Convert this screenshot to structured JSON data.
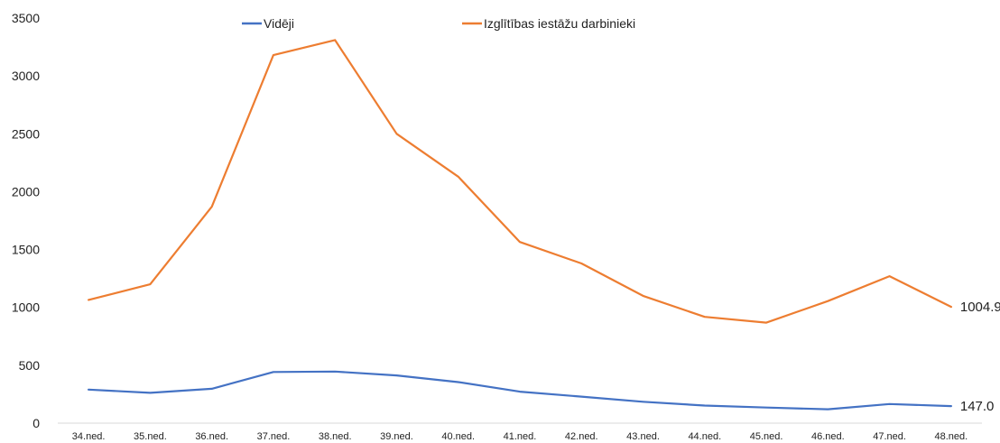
{
  "chart_data": {
    "type": "line",
    "title": "",
    "xlabel": "",
    "ylabel": "",
    "categories": [
      "34.ned.",
      "35.ned.",
      "36.ned.",
      "37.ned.",
      "38.ned.",
      "39.ned.",
      "40.ned.",
      "41.ned.",
      "42.ned.",
      "43.ned.",
      "44.ned.",
      "45.ned.",
      "46.ned.",
      "47.ned.",
      "48.ned."
    ],
    "ylim": [
      0,
      3500
    ],
    "yticks": [
      0,
      500,
      1000,
      1500,
      2000,
      2500,
      3000,
      3500
    ],
    "grid": false,
    "legend_position": "top",
    "series": [
      {
        "name": "Vidēji",
        "color": "#4472C4",
        "values": [
          290,
          262,
          297,
          442,
          446,
          412,
          355,
          272,
          229,
          185,
          152,
          135,
          120,
          165,
          147.0
        ],
        "end_label": "147.0"
      },
      {
        "name": "Izglītības iestāžu darbinieki",
        "color": "#ED7D31",
        "values": [
          1065,
          1200,
          1870,
          3180,
          3310,
          2500,
          2130,
          1565,
          1380,
          1100,
          918,
          868,
          1055,
          1270,
          1004.9
        ],
        "end_label": "1004.9"
      }
    ]
  }
}
